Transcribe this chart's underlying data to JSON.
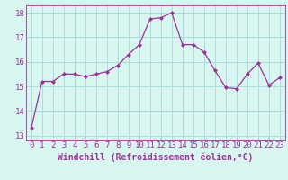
{
  "x": [
    0,
    1,
    2,
    3,
    4,
    5,
    6,
    7,
    8,
    9,
    10,
    11,
    12,
    13,
    14,
    15,
    16,
    17,
    18,
    19,
    20,
    21,
    22,
    23
  ],
  "y": [
    13.3,
    15.2,
    15.2,
    15.5,
    15.5,
    15.4,
    15.5,
    15.6,
    15.85,
    16.3,
    16.7,
    17.75,
    17.8,
    18.0,
    16.7,
    16.7,
    16.4,
    15.65,
    14.95,
    14.9,
    15.5,
    15.95,
    15.05,
    15.35
  ],
  "line_color": "#993399",
  "marker": "D",
  "marker_size": 2,
  "bg_color": "#d8f5f0",
  "grid_color": "#aadddd",
  "xlabel": "Windchill (Refroidissement éolien,°C)",
  "xlabel_fontsize": 7,
  "xtick_labels": [
    "0",
    "1",
    "2",
    "3",
    "4",
    "5",
    "6",
    "7",
    "8",
    "9",
    "10",
    "11",
    "12",
    "13",
    "14",
    "15",
    "16",
    "17",
    "18",
    "19",
    "20",
    "21",
    "22",
    "23"
  ],
  "ytick_labels": [
    "13",
    "14",
    "15",
    "16",
    "17",
    "18"
  ],
  "ylim": [
    12.8,
    18.3
  ],
  "xlim": [
    -0.5,
    23.5
  ],
  "tick_fontsize": 6.5,
  "tick_color": "#993399",
  "spine_color": "#993399"
}
